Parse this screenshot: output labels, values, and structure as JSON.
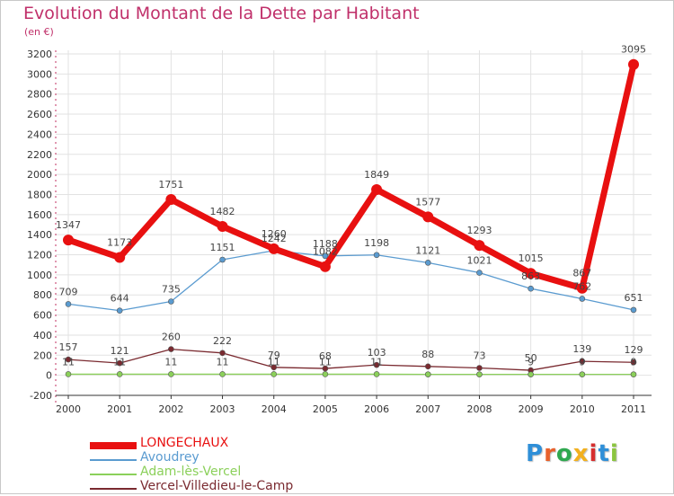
{
  "header": {
    "title": "Evolution du Montant de la Dette par Habitant",
    "unit": "(en €)"
  },
  "logo": {
    "text": "Proxiti",
    "letters": [
      "P",
      "r",
      "o",
      "x",
      "i",
      "t",
      "i"
    ],
    "colors": [
      "#2f8fd8",
      "#e8612c",
      "#2fa84f",
      "#f2b01e",
      "#d62f2f",
      "#2f8fd8",
      "#8bc53f"
    ]
  },
  "chart_data": {
    "type": "line",
    "title": "Evolution du Montant de la Dette par Habitant",
    "subtitle": "(en €)",
    "xlabel": "",
    "ylabel": "",
    "x": [
      "2000",
      "2001",
      "2002",
      "2003",
      "2004",
      "2005",
      "2006",
      "2007",
      "2008",
      "2009",
      "2010",
      "2011"
    ],
    "ylim": [
      -200,
      3200
    ],
    "yticks": [
      -200,
      0,
      200,
      400,
      600,
      800,
      1000,
      1200,
      1400,
      1600,
      1800,
      2000,
      2200,
      2400,
      2600,
      2800,
      3000,
      3200
    ],
    "grid": true,
    "legend": "bottom-left",
    "series": [
      {
        "name": "LONGECHAUX",
        "color": "#e81010",
        "values": [
          1347,
          1173,
          1751,
          1482,
          1260,
          1082,
          1849,
          1577,
          1293,
          1015,
          867,
          3095
        ],
        "labels": [
          "1347",
          "1173",
          "1751",
          "1482",
          "1260",
          "1082",
          "1849",
          "1577",
          "1293",
          "1015",
          "867",
          "3095"
        ]
      },
      {
        "name": "Avoudrey",
        "color": "#5a9bd0",
        "values": [
          709,
          644,
          735,
          1151,
          1242,
          1188,
          1198,
          1121,
          1021,
          863,
          762,
          651
        ],
        "labels": [
          "709",
          "644",
          "735",
          "1151",
          "1242",
          "1188",
          "1198",
          "1121",
          "1021",
          "863",
          "762",
          "651"
        ]
      },
      {
        "name": "Adam-lès-Vercel",
        "color": "#8bd05a",
        "values": [
          11,
          11,
          11,
          11,
          11,
          11,
          11,
          9,
          9,
          9,
          9,
          9
        ],
        "labels": [
          "11",
          "11",
          "11",
          "11",
          "11",
          "11",
          "11",
          "",
          "",
          "9",
          "9",
          "9"
        ]
      },
      {
        "name": "Vercel-Villedieu-le-Camp",
        "color": "#7a2a30",
        "values": [
          157,
          121,
          260,
          222,
          79,
          68,
          103,
          88,
          73,
          50,
          139,
          129
        ],
        "labels": [
          "157",
          "121",
          "260",
          "222",
          "79",
          "68",
          "103",
          "88",
          "73",
          "50",
          "139",
          "129"
        ]
      }
    ]
  }
}
